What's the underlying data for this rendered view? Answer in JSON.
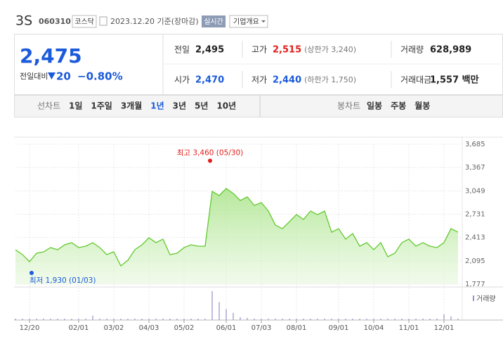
{
  "header": {
    "name": "3S",
    "code": "060310",
    "market": "코스닥",
    "date": "2023.12.20 기준(장마감)",
    "realtime": "실시간",
    "company_info": "기업개요"
  },
  "quote": {
    "price": "2,475",
    "change_label": "전일대비",
    "change": "20",
    "rate": "−0.80%"
  },
  "stats": [
    {
      "label": "전일",
      "value": "2,495"
    },
    {
      "label": "고가",
      "value": "2,515",
      "note": "(상한가 3,240)"
    },
    {
      "label": "거래량",
      "value": "628,989"
    },
    {
      "label": "시가",
      "value": "2,470"
    },
    {
      "label": "저가",
      "value": "2,440",
      "note": "(하한가 1,750)"
    },
    {
      "label": "거래대금",
      "value": "1,557 백만"
    }
  ],
  "tabs": {
    "line_title": "선차트",
    "line": [
      "1일",
      "1주일",
      "3개월",
      "1년",
      "3년",
      "5년",
      "10년"
    ],
    "active": "1년",
    "candle_title": "봉차트",
    "candle": [
      "일봉",
      "주봉",
      "월봉"
    ]
  },
  "chart_data": {
    "type": "area",
    "color": "#62c92e",
    "categories": [
      null,
      null,
      "12/20",
      null,
      null,
      null,
      null,
      null,
      null,
      "02/01",
      null,
      null,
      null,
      null,
      "03/02",
      null,
      null,
      null,
      null,
      "04/03",
      null,
      null,
      null,
      null,
      "05/02",
      null,
      null,
      null,
      null,
      null,
      "06/01",
      null,
      null,
      null,
      null,
      "07/03",
      null,
      null,
      null,
      null,
      "08/01",
      null,
      null,
      null,
      null,
      null,
      "09/01",
      null,
      null,
      null,
      null,
      "10/04",
      null,
      null,
      null,
      null,
      "11/01",
      null,
      null,
      null,
      null,
      "12/01",
      null,
      null
    ],
    "values": [
      2247,
      2180,
      2084,
      2199,
      2218,
      2276,
      2247,
      2314,
      2343,
      2276,
      2295,
      2343,
      2276,
      2180,
      2218,
      2026,
      2103,
      2247,
      2314,
      2410,
      2343,
      2391,
      2180,
      2199,
      2276,
      2314,
      2295,
      2295,
      3043,
      2985,
      3081,
      3014,
      2918,
      2966,
      2851,
      2889,
      2774,
      2582,
      2534,
      2630,
      2726,
      2659,
      2774,
      2726,
      2774,
      2486,
      2534,
      2391,
      2467,
      2295,
      2343,
      2247,
      2343,
      2151,
      2199,
      2343,
      2391,
      2295,
      2343,
      2295,
      2276,
      2343,
      2534,
      2486
    ],
    "volume_label": "거래량",
    "volume": [
      2,
      2,
      2,
      2,
      2,
      2,
      2,
      2,
      2,
      2,
      2,
      6,
      2,
      2,
      2,
      2,
      2,
      2,
      2,
      2,
      2,
      2,
      2,
      2,
      2,
      2,
      2,
      2,
      40,
      25,
      15,
      10,
      4,
      3,
      2,
      2,
      2,
      2,
      2,
      2,
      2,
      2,
      2,
      2,
      2,
      2,
      2,
      2,
      2,
      2,
      2,
      2,
      2,
      2,
      2,
      2,
      2,
      2,
      2,
      2,
      2,
      8,
      5,
      2
    ],
    "ylim": [
      1777,
      3685
    ],
    "yticks": [
      {
        "value": 1777,
        "label": "1,777"
      },
      {
        "value": 2095,
        "label": "2,095"
      },
      {
        "value": 2413,
        "label": "2,413"
      },
      {
        "value": 2731,
        "label": "2,731"
      },
      {
        "value": 3049,
        "label": "3,049"
      },
      {
        "value": 3367,
        "label": "3,367"
      },
      {
        "value": 3685,
        "label": "3,685"
      }
    ],
    "grid": true,
    "high": {
      "text": "최고 3,460 (05/30)",
      "value": 3460,
      "color": "#e0201b"
    },
    "low": {
      "text": "최저 1,930 (01/03)",
      "value": 1930,
      "color": "#1a5adb"
    }
  }
}
